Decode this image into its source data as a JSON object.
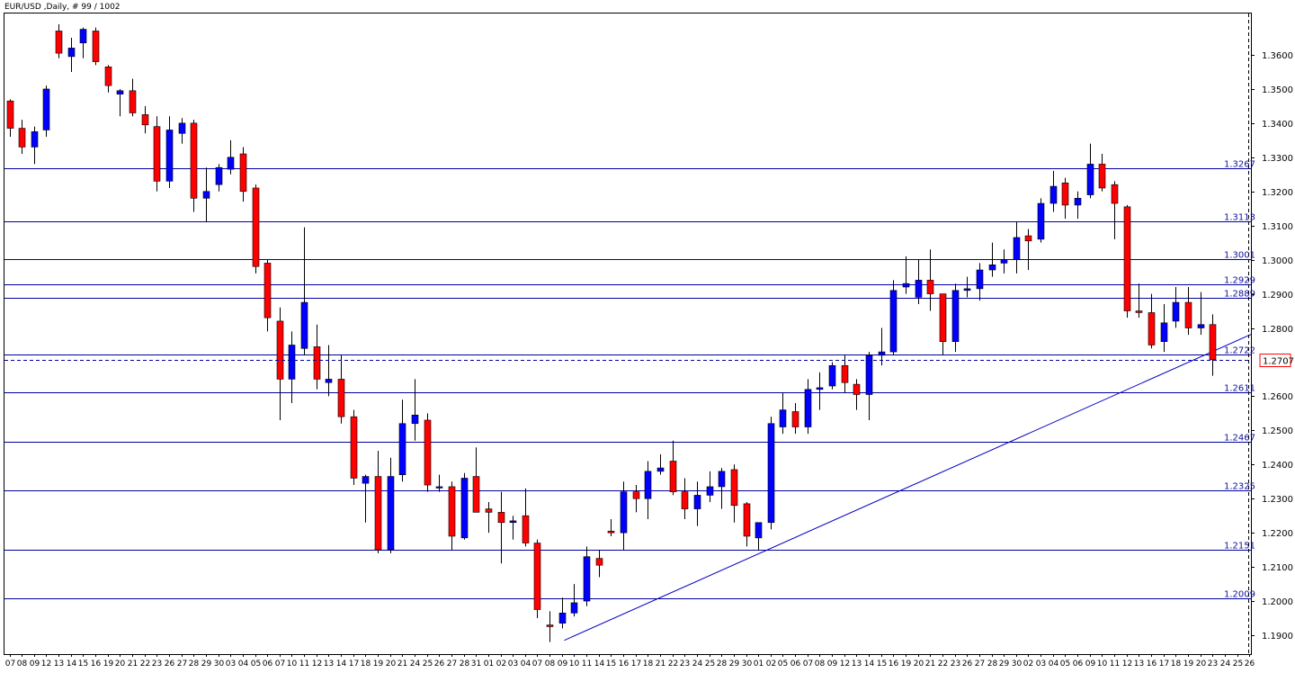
{
  "header": {
    "title": "EUR/USD ,Daily, # 99 / 1002"
  },
  "colors": {
    "bull": "#0000ff",
    "bear": "#ff0000",
    "wick": "#000000",
    "hline": "#0000a0",
    "trend": "#0000c0",
    "current": "#ff0000"
  },
  "chart_data": {
    "type": "candlestick",
    "symbol": "EUR/USD",
    "timeframe": "Daily",
    "ylim": [
      1.185,
      1.373
    ],
    "y_ticks": [
      "1.3600",
      "1.3500",
      "1.3400",
      "1.3300",
      "1.3200",
      "1.3100",
      "1.3000",
      "1.2900",
      "1.2800",
      "1.2600",
      "1.2500",
      "1.2400",
      "1.2300",
      "1.2200",
      "1.2100",
      "1.2000",
      "1.1900"
    ],
    "x_labels": [
      "07",
      "08",
      "09",
      "12",
      "13",
      "14",
      "15",
      "16",
      "19",
      "20",
      "21",
      "22",
      "23",
      "26",
      "27",
      "28",
      "29",
      "30",
      "03",
      "04",
      "05",
      "06",
      "07",
      "10",
      "11",
      "12",
      "13",
      "14",
      "17",
      "18",
      "19",
      "20",
      "21",
      "24",
      "25",
      "26",
      "27",
      "28",
      "31",
      "01",
      "02",
      "03",
      "04",
      "07",
      "08",
      "09",
      "10",
      "11",
      "14",
      "15",
      "16",
      "17",
      "18",
      "21",
      "22",
      "23",
      "24",
      "25",
      "28",
      "29",
      "30",
      "01",
      "02",
      "05",
      "06",
      "07",
      "08",
      "09",
      "12",
      "13",
      "14",
      "15",
      "16",
      "19",
      "20",
      "21",
      "22",
      "23",
      "26",
      "27",
      "28",
      "29",
      "30",
      "02",
      "03",
      "04",
      "05",
      "06",
      "09",
      "10",
      "11",
      "12",
      "13",
      "16",
      "17",
      "18",
      "19",
      "20",
      "23",
      "24",
      "25",
      "26"
    ],
    "horizontal_levels": [
      {
        "value": 1.3267,
        "label": "1.3267"
      },
      {
        "value": 1.3113,
        "label": "1.3113"
      },
      {
        "value": 1.3001,
        "label": "1.3001"
      },
      {
        "value": 1.2929,
        "label": "1.2929"
      },
      {
        "value": 1.2889,
        "label": "1.2889"
      },
      {
        "value": 1.2722,
        "label": "1.2722"
      },
      {
        "value": 1.2611,
        "label": "1.2611"
      },
      {
        "value": 1.2467,
        "label": "1.2467"
      },
      {
        "value": 1.2325,
        "label": "1.2325"
      },
      {
        "value": 1.2151,
        "label": "1.2151"
      },
      {
        "value": 1.2009,
        "label": "1.2009"
      }
    ],
    "current_price": {
      "value": 1.2707,
      "label": "1.2707"
    },
    "trendline": {
      "x1": 45.2,
      "y1": 1.1885,
      "x2": 107,
      "y2": 1.2875
    },
    "candles": [
      [
        1.3465,
        1.347,
        1.336,
        1.3385
      ],
      [
        1.3385,
        1.341,
        1.331,
        1.333
      ],
      [
        1.333,
        1.339,
        1.328,
        1.3375
      ],
      [
        1.338,
        1.351,
        1.336,
        1.35
      ],
      [
        1.367,
        1.369,
        1.359,
        1.3605
      ],
      [
        1.3595,
        1.365,
        1.355,
        1.362
      ],
      [
        1.3635,
        1.368,
        1.359,
        1.3675
      ],
      [
        1.367,
        1.368,
        1.357,
        1.358
      ],
      [
        1.3565,
        1.357,
        1.349,
        1.351
      ],
      [
        1.3485,
        1.35,
        1.342,
        1.3495
      ],
      [
        1.3495,
        1.353,
        1.342,
        1.343
      ],
      [
        1.3425,
        1.345,
        1.337,
        1.3395
      ],
      [
        1.339,
        1.342,
        1.32,
        1.323
      ],
      [
        1.323,
        1.342,
        1.321,
        1.338
      ],
      [
        1.337,
        1.3415,
        1.334,
        1.34
      ],
      [
        1.34,
        1.341,
        1.314,
        1.318
      ],
      [
        1.318,
        1.327,
        1.311,
        1.32
      ],
      [
        1.322,
        1.328,
        1.32,
        1.327
      ],
      [
        1.3265,
        1.335,
        1.325,
        1.33
      ],
      [
        1.331,
        1.333,
        1.317,
        1.32
      ],
      [
        1.321,
        1.322,
        1.296,
        1.298
      ],
      [
        1.299,
        1.3,
        1.279,
        1.283
      ],
      [
        1.282,
        1.286,
        1.253,
        1.265
      ],
      [
        1.265,
        1.279,
        1.258,
        1.275
      ],
      [
        1.274,
        1.3095,
        1.272,
        1.2875
      ],
      [
        1.2745,
        1.281,
        1.262,
        1.265
      ],
      [
        1.264,
        1.275,
        1.26,
        1.265
      ],
      [
        1.265,
        1.272,
        1.252,
        1.254
      ],
      [
        1.254,
        1.256,
        1.234,
        1.236
      ],
      [
        1.2345,
        1.237,
        1.223,
        1.2365
      ],
      [
        1.2365,
        1.244,
        1.214,
        1.215
      ],
      [
        1.215,
        1.242,
        1.214,
        1.2365
      ],
      [
        1.237,
        1.259,
        1.235,
        1.252
      ],
      [
        1.252,
        1.265,
        1.247,
        1.2545
      ],
      [
        1.253,
        1.255,
        1.232,
        1.234
      ],
      [
        1.2335,
        1.237,
        1.232,
        1.2335
      ],
      [
        1.2335,
        1.235,
        1.215,
        1.219
      ],
      [
        1.2185,
        1.2375,
        1.218,
        1.236
      ],
      [
        1.2365,
        1.245,
        1.226,
        1.226
      ],
      [
        1.227,
        1.229,
        1.22,
        1.226
      ],
      [
        1.226,
        1.232,
        1.211,
        1.223
      ],
      [
        1.223,
        1.225,
        1.218,
        1.2235
      ],
      [
        1.225,
        1.233,
        1.216,
        1.217
      ],
      [
        1.217,
        1.218,
        1.195,
        1.1975
      ],
      [
        1.193,
        1.197,
        1.188,
        1.1925
      ],
      [
        1.1935,
        1.201,
        1.192,
        1.1965
      ],
      [
        1.1965,
        1.205,
        1.1955,
        1.1995
      ],
      [
        1.2,
        1.216,
        1.1985,
        1.213
      ],
      [
        1.2125,
        1.215,
        1.207,
        1.2105
      ],
      [
        1.2205,
        1.224,
        1.219,
        1.22
      ],
      [
        1.22,
        1.235,
        1.215,
        1.232
      ],
      [
        1.232,
        1.234,
        1.226,
        1.23
      ],
      [
        1.23,
        1.241,
        1.224,
        1.238
      ],
      [
        1.238,
        1.243,
        1.237,
        1.239
      ],
      [
        1.241,
        1.247,
        1.231,
        1.232
      ],
      [
        1.232,
        1.236,
        1.224,
        1.227
      ],
      [
        1.227,
        1.235,
        1.222,
        1.231
      ],
      [
        1.231,
        1.238,
        1.229,
        1.2335
      ],
      [
        1.2335,
        1.239,
        1.227,
        1.238
      ],
      [
        1.2385,
        1.24,
        1.223,
        1.228
      ],
      [
        1.2285,
        1.229,
        1.216,
        1.219
      ],
      [
        1.2185,
        1.223,
        1.215,
        1.223
      ],
      [
        1.223,
        1.254,
        1.221,
        1.252
      ],
      [
        1.251,
        1.261,
        1.249,
        1.256
      ],
      [
        1.2555,
        1.258,
        1.249,
        1.251
      ],
      [
        1.251,
        1.265,
        1.249,
        1.262
      ],
      [
        1.262,
        1.267,
        1.256,
        1.2625
      ],
      [
        1.263,
        1.27,
        1.262,
        1.269
      ],
      [
        1.269,
        1.272,
        1.261,
        1.264
      ],
      [
        1.2635,
        1.265,
        1.256,
        1.2605
      ],
      [
        1.2605,
        1.273,
        1.253,
        1.272
      ],
      [
        1.272,
        1.28,
        1.269,
        1.273
      ],
      [
        1.273,
        1.294,
        1.272,
        1.291
      ],
      [
        1.292,
        1.301,
        1.29,
        1.293
      ],
      [
        1.289,
        1.3,
        1.287,
        1.294
      ],
      [
        1.294,
        1.303,
        1.285,
        1.29
      ],
      [
        1.29,
        1.29,
        1.272,
        1.276
      ],
      [
        1.276,
        1.293,
        1.273,
        1.291
      ],
      [
        1.291,
        1.295,
        1.289,
        1.2915
      ],
      [
        1.2915,
        1.299,
        1.288,
        1.297
      ],
      [
        1.297,
        1.305,
        1.295,
        1.2985
      ],
      [
        1.299,
        1.303,
        1.296,
        1.3
      ],
      [
        1.3,
        1.311,
        1.296,
        1.3065
      ],
      [
        1.307,
        1.309,
        1.297,
        1.3055
      ],
      [
        1.306,
        1.318,
        1.305,
        1.3165
      ],
      [
        1.3165,
        1.326,
        1.314,
        1.3215
      ],
      [
        1.3225,
        1.324,
        1.312,
        1.316
      ],
      [
        1.316,
        1.32,
        1.312,
        1.318
      ],
      [
        1.319,
        1.334,
        1.318,
        1.328
      ],
      [
        1.328,
        1.331,
        1.32,
        1.321
      ],
      [
        1.322,
        1.323,
        1.306,
        1.3165
      ],
      [
        1.3155,
        1.316,
        1.283,
        1.285
      ],
      [
        1.285,
        1.293,
        1.283,
        1.2845
      ],
      [
        1.2845,
        1.29,
        1.274,
        1.275
      ],
      [
        1.276,
        1.287,
        1.273,
        1.2815
      ],
      [
        1.282,
        1.292,
        1.28,
        1.2875
      ],
      [
        1.2875,
        1.292,
        1.278,
        1.28
      ],
      [
        1.28,
        1.2905,
        1.278,
        1.281
      ],
      [
        1.281,
        1.284,
        1.266,
        1.2707
      ]
    ]
  }
}
